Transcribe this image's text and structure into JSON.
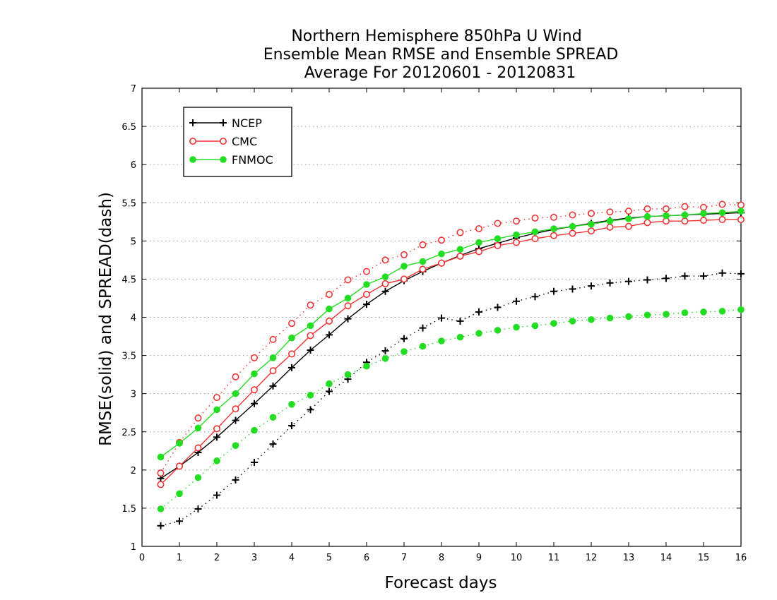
{
  "chart_data": {
    "type": "line",
    "title": [
      "Northern Hemisphere 850hPa U Wind",
      "Ensemble Mean RMSE and Ensemble SPREAD",
      "Average For 20120601 - 20120831"
    ],
    "xlabel": "Forecast days",
    "ylabel": "RMSE(solid) and SPREAD(dash)",
    "xlim": [
      0,
      16
    ],
    "ylim": [
      1,
      7
    ],
    "x_ticks": [
      0,
      1,
      2,
      3,
      4,
      5,
      6,
      7,
      8,
      9,
      10,
      11,
      12,
      13,
      14,
      15,
      16
    ],
    "y_ticks": [
      1,
      1.5,
      2,
      2.5,
      3,
      3.5,
      4,
      4.5,
      5,
      5.5,
      6,
      6.5,
      7
    ],
    "grid": "horizontal dotted",
    "legend_position": "top-left",
    "x": [
      0.5,
      1,
      1.5,
      2,
      2.5,
      3,
      3.5,
      4,
      4.5,
      5,
      5.5,
      6,
      6.5,
      7,
      7.5,
      8,
      8.5,
      9,
      9.5,
      10,
      10.5,
      11,
      11.5,
      12,
      12.5,
      13,
      13.5,
      14,
      14.5,
      15,
      15.5,
      16
    ],
    "series": [
      {
        "name": "NCEP",
        "metric": "RMSE",
        "line": "solid",
        "marker": "plus",
        "color": "#000000",
        "values": [
          1.89,
          2.05,
          2.23,
          2.43,
          2.65,
          2.87,
          3.1,
          3.34,
          3.57,
          3.77,
          3.98,
          4.17,
          4.34,
          4.48,
          4.6,
          4.71,
          4.81,
          4.9,
          4.97,
          5.04,
          5.1,
          5.15,
          5.19,
          5.23,
          5.27,
          5.3,
          5.32,
          5.33,
          5.34,
          5.35,
          5.36,
          5.37
        ]
      },
      {
        "name": "NCEP",
        "metric": "SPREAD",
        "line": "dash",
        "marker": "plus",
        "color": "#000000",
        "values": [
          1.27,
          1.33,
          1.49,
          1.67,
          1.87,
          2.1,
          2.34,
          2.58,
          2.79,
          3.03,
          3.19,
          3.41,
          3.56,
          3.72,
          3.86,
          3.99,
          3.95,
          4.07,
          4.13,
          4.21,
          4.27,
          4.34,
          4.37,
          4.41,
          4.45,
          4.47,
          4.49,
          4.51,
          4.54,
          4.54,
          4.58,
          4.57
        ]
      },
      {
        "name": "CMC",
        "metric": "RMSE",
        "line": "solid",
        "marker": "open-circle",
        "color": "#ee3333",
        "values": [
          1.81,
          2.05,
          2.29,
          2.54,
          2.8,
          3.05,
          3.3,
          3.52,
          3.76,
          3.95,
          4.15,
          4.3,
          4.44,
          4.5,
          4.63,
          4.71,
          4.8,
          4.86,
          4.94,
          4.98,
          5.03,
          5.07,
          5.1,
          5.13,
          5.18,
          5.19,
          5.24,
          5.26,
          5.26,
          5.27,
          5.28,
          5.28
        ]
      },
      {
        "name": "CMC",
        "metric": "SPREAD",
        "line": "dash",
        "marker": "open-circle",
        "color": "#ee3333",
        "values": [
          1.96,
          2.36,
          2.68,
          2.95,
          3.22,
          3.47,
          3.71,
          3.92,
          4.16,
          4.3,
          4.49,
          4.6,
          4.75,
          4.82,
          4.95,
          5.01,
          5.11,
          5.16,
          5.23,
          5.26,
          5.3,
          5.31,
          5.34,
          5.36,
          5.38,
          5.39,
          5.42,
          5.42,
          5.45,
          5.44,
          5.48,
          5.47
        ]
      },
      {
        "name": "FNMOC",
        "metric": "RMSE",
        "line": "solid",
        "marker": "filled-circle",
        "color": "#22dd22",
        "values": [
          2.17,
          2.35,
          2.55,
          2.79,
          3.0,
          3.26,
          3.47,
          3.73,
          3.89,
          4.11,
          4.25,
          4.43,
          4.53,
          4.67,
          4.73,
          4.83,
          4.89,
          4.98,
          5.03,
          5.08,
          5.12,
          5.16,
          5.19,
          5.22,
          5.26,
          5.29,
          5.32,
          5.33,
          5.34,
          5.36,
          5.37,
          5.39
        ]
      },
      {
        "name": "FNMOC",
        "metric": "SPREAD",
        "line": "dash",
        "marker": "filled-circle",
        "color": "#22dd22",
        "values": [
          1.49,
          1.69,
          1.9,
          2.12,
          2.32,
          2.52,
          2.69,
          2.86,
          2.98,
          3.13,
          3.25,
          3.36,
          3.46,
          3.55,
          3.62,
          3.69,
          3.74,
          3.79,
          3.83,
          3.87,
          3.89,
          3.92,
          3.95,
          3.97,
          3.99,
          4.01,
          4.03,
          4.04,
          4.06,
          4.07,
          4.08,
          4.1
        ]
      }
    ],
    "legend": [
      "NCEP",
      "CMC",
      "FNMOC"
    ]
  }
}
